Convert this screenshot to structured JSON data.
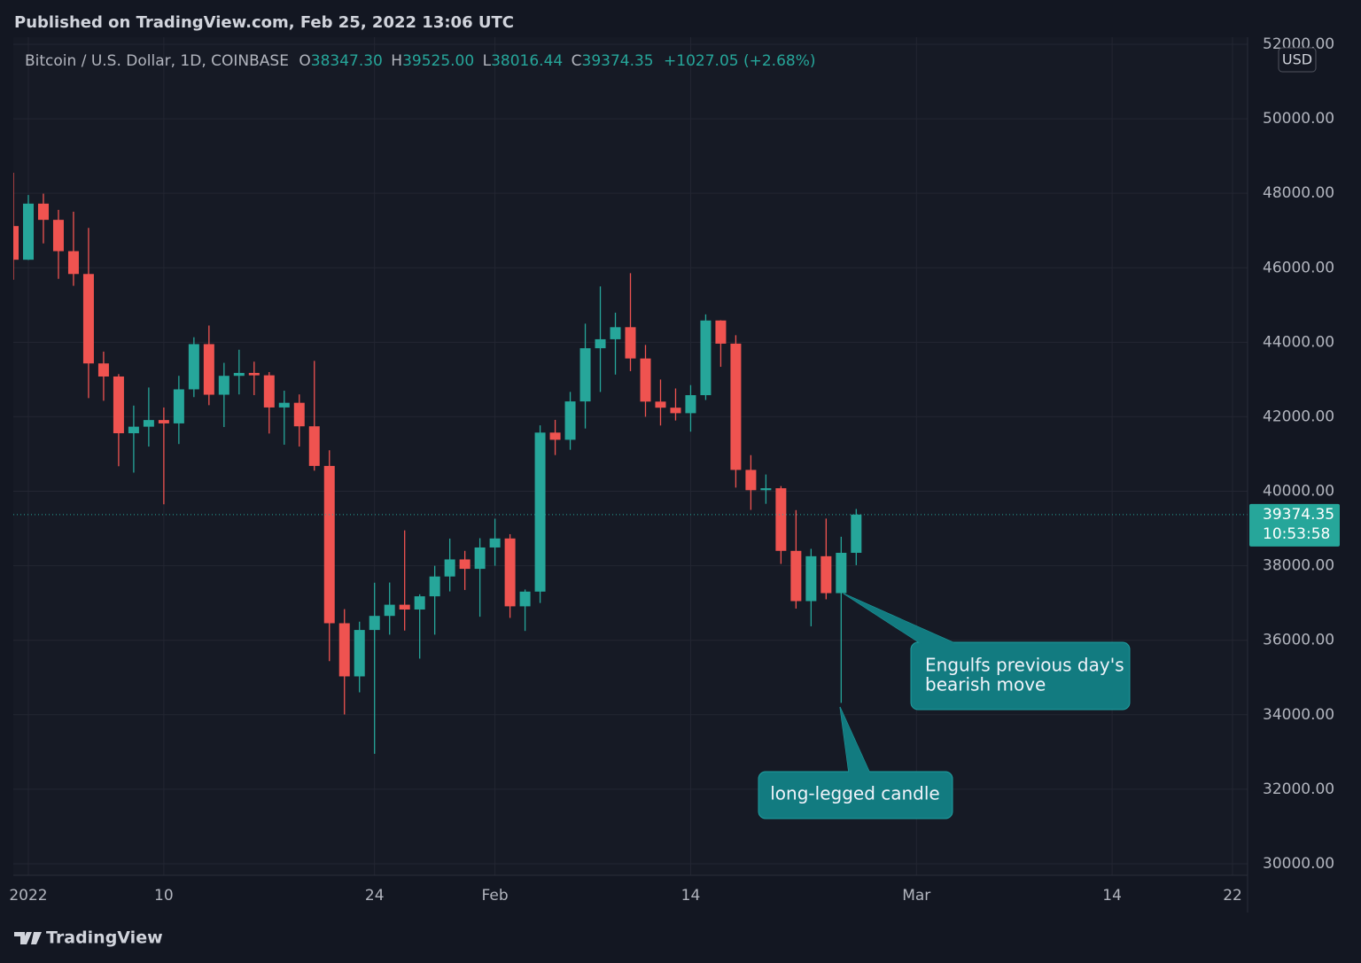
{
  "chart_data": {
    "type": "candlestick",
    "published": "Published on TradingView.com, Feb 25, 2022 13:06 UTC",
    "symbol": "Bitcoin / U.S. Dollar, 1D, COINBASE",
    "legend_labels": [
      "O",
      "H",
      "L",
      "C"
    ],
    "ohlc_labels": [
      "38347.30",
      "39525.00",
      "38016.44",
      "39374.35"
    ],
    "change": "+1027.05 (+2.68%)",
    "currency": "USD",
    "countdown": "10:53:58",
    "brand": "TradingView",
    "up_color": "#26a69a",
    "down_color": "#ef5350",
    "grid": true,
    "x": [
      "2021-12-31",
      "2022-01-01",
      "2022-01-02",
      "2022-01-03",
      "2022-01-04",
      "2022-01-05",
      "2022-01-06",
      "2022-01-07",
      "2022-01-08",
      "2022-01-09",
      "2022-01-10",
      "2022-01-11",
      "2022-01-12",
      "2022-01-13",
      "2022-01-14",
      "2022-01-15",
      "2022-01-16",
      "2022-01-17",
      "2022-01-18",
      "2022-01-19",
      "2022-01-20",
      "2022-01-21",
      "2022-01-22",
      "2022-01-23",
      "2022-01-24",
      "2022-01-25",
      "2022-01-26",
      "2022-01-27",
      "2022-01-28",
      "2022-01-29",
      "2022-01-30",
      "2022-01-31",
      "2022-02-01",
      "2022-02-02",
      "2022-02-03",
      "2022-02-04",
      "2022-02-05",
      "2022-02-06",
      "2022-02-07",
      "2022-02-08",
      "2022-02-09",
      "2022-02-10",
      "2022-02-11",
      "2022-02-12",
      "2022-02-13",
      "2022-02-14",
      "2022-02-15",
      "2022-02-16",
      "2022-02-17",
      "2022-02-18",
      "2022-02-19",
      "2022-02-20",
      "2022-02-21",
      "2022-02-22",
      "2022-02-23",
      "2022-02-24",
      "2022-02-25"
    ],
    "open": [
      47120,
      46216,
      47722,
      47287,
      46446,
      45833,
      43432,
      43081,
      41558,
      41734,
      41912,
      41822,
      42736,
      43950,
      42592,
      43099,
      43177,
      43113,
      42250,
      42375,
      41744,
      40680,
      36457,
      35030,
      36276,
      36654,
      36954,
      36825,
      37180,
      37712,
      38170,
      37917,
      38491,
      38733,
      36911,
      37306,
      41575,
      41382,
      42412,
      43840,
      44081,
      44405,
      43565,
      42407,
      42244,
      42096,
      42580,
      44585,
      43963,
      40573,
      40029,
      40081,
      38400,
      37051,
      38256,
      37265,
      38347.3
    ],
    "high": [
      48550,
      47954,
      47990,
      47555,
      47505,
      47070,
      43749,
      43145,
      42300,
      42786,
      42249,
      43100,
      44135,
      44450,
      43448,
      43800,
      43479,
      43200,
      42700,
      42600,
      43500,
      41100,
      36836,
      36499,
      37545,
      37550,
      38950,
      37234,
      38000,
      38730,
      38400,
      38740,
      39264,
      38848,
      37362,
      41769,
      41917,
      42668,
      44500,
      45500,
      44795,
      45855,
      43928,
      43000,
      42760,
      42850,
      44749,
      44592,
      44190,
      40970,
      40450,
      40140,
      39494,
      38455,
      39266,
      38780,
      39525
    ],
    "low": [
      45680,
      46208,
      46654,
      45704,
      45516,
      42500,
      42430,
      40672,
      40501,
      41200,
      39650,
      41268,
      42528,
      42311,
      41725,
      42600,
      42581,
      41550,
      41250,
      41200,
      40553,
      35440,
      34008,
      34601,
      32950,
      36150,
      36260,
      35507,
      36150,
      37311,
      37350,
      36632,
      38000,
      36600,
      36250,
      37000,
      40972,
      41114,
      41685,
      42666,
      43133,
      43225,
      42000,
      41765,
      41900,
      41600,
      42450,
      43341,
      40100,
      39500,
      39663,
      38050,
      36850,
      36375,
      37100,
      34320,
      38016.44
    ],
    "close": [
      46216,
      47722,
      47287,
      46446,
      45833,
      43432,
      43081,
      41558,
      41734,
      41912,
      41822,
      42736,
      43950,
      42592,
      43099,
      43177,
      43113,
      42250,
      42375,
      41744,
      40680,
      36457,
      35030,
      36276,
      36654,
      36954,
      36825,
      37180,
      37712,
      38170,
      37917,
      38491,
      38733,
      36911,
      37306,
      41575,
      41382,
      42412,
      43840,
      44081,
      44405,
      43565,
      42407,
      42244,
      42096,
      42580,
      44585,
      43963,
      40573,
      40029,
      40081,
      38400,
      37051,
      38256,
      37265,
      38347.3,
      39374.35
    ],
    "xlim": [
      "2021-12-31",
      "2022-03-23"
    ],
    "xticks": [
      {
        "value": "2022-01-01",
        "label": "2022"
      },
      {
        "value": "2022-01-10",
        "label": "10"
      },
      {
        "value": "2022-01-24",
        "label": "24"
      },
      {
        "value": "2022-02-01",
        "label": "Feb"
      },
      {
        "value": "2022-02-14",
        "label": "14"
      },
      {
        "value": "2022-03-01",
        "label": "Mar"
      },
      {
        "value": "2022-03-14",
        "label": "14"
      },
      {
        "value": "2022-03-22",
        "label": "22"
      }
    ],
    "ylim": [
      29690,
      52190
    ],
    "yticks": [
      {
        "value": 30000,
        "label": "30000.00"
      },
      {
        "value": 32000,
        "label": "32000.00"
      },
      {
        "value": 34000,
        "label": "34000.00"
      },
      {
        "value": 36000,
        "label": "36000.00"
      },
      {
        "value": 38000,
        "label": "38000.00"
      },
      {
        "value": 40000,
        "label": "40000.00"
      },
      {
        "value": 42000,
        "label": "42000.00"
      },
      {
        "value": 44000,
        "label": "44000.00"
      },
      {
        "value": 46000,
        "label": "46000.00"
      },
      {
        "value": 48000,
        "label": "48000.00"
      },
      {
        "value": 50000,
        "label": "50000.00"
      },
      {
        "value": 52000,
        "label": "52000.00"
      }
    ],
    "annotations": [
      {
        "lines": [
          "Engulfs previous day's",
          "bearish move"
        ]
      },
      {
        "lines": [
          "long-legged candle"
        ]
      }
    ]
  }
}
